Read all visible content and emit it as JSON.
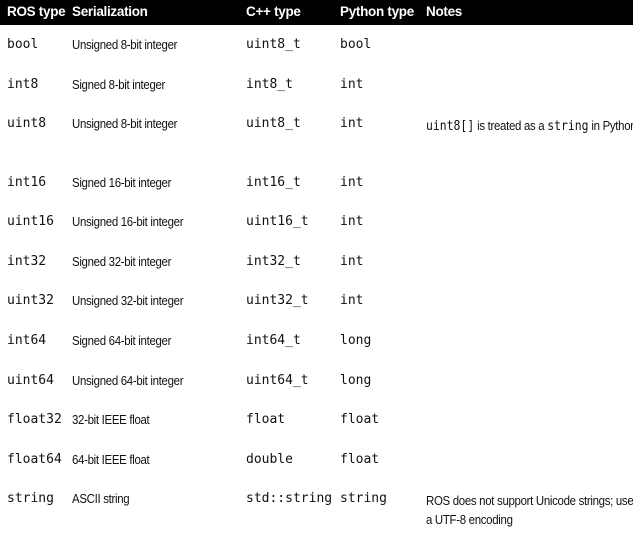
{
  "headers": {
    "ros_type": "ROS type",
    "serialization": "Serialization",
    "cpp_type": "C++ type",
    "python_type": "Python type",
    "notes": "Notes"
  },
  "rows": [
    {
      "ros": "bool",
      "ser": "Unsigned 8-bit integer",
      "cpp": "uint8_t",
      "py": "bool"
    },
    {
      "ros": "int8",
      "ser": "Signed 8-bit integer",
      "cpp": "int8_t",
      "py": "int"
    },
    {
      "ros": "uint8",
      "ser": "Unsigned 8-bit integer",
      "cpp": "uint8_t",
      "py": "int",
      "note_code1": "uint8[]",
      "note_text1": " is treated as a ",
      "note_code2": "string",
      "note_text2": " in Python"
    },
    {
      "ros": "int16",
      "ser": "Signed 16-bit integer",
      "cpp": "int16_t",
      "py": "int"
    },
    {
      "ros": "uint16",
      "ser": "Unsigned 16-bit integer",
      "cpp": "uint16_t",
      "py": "int"
    },
    {
      "ros": "int32",
      "ser": "Signed 32-bit integer",
      "cpp": "int32_t",
      "py": "int"
    },
    {
      "ros": "uint32",
      "ser": "Unsigned 32-bit integer",
      "cpp": "uint32_t",
      "py": "int"
    },
    {
      "ros": "int64",
      "ser": "Signed 64-bit integer",
      "cpp": "int64_t",
      "py": "long"
    },
    {
      "ros": "uint64",
      "ser": "Unsigned 64-bit integer",
      "cpp": "uint64_t",
      "py": "long"
    },
    {
      "ros": "float32",
      "ser": "32-bit IEEE float",
      "cpp": "float",
      "py": "float"
    },
    {
      "ros": "float64",
      "ser": "64-bit IEEE float",
      "cpp": "double",
      "py": "float"
    },
    {
      "ros": "string",
      "ser": "ASCII string",
      "cpp": "std::string",
      "py": "string",
      "note": "ROS does not support Unicode strings; use a UTF-8 encoding"
    }
  ]
}
